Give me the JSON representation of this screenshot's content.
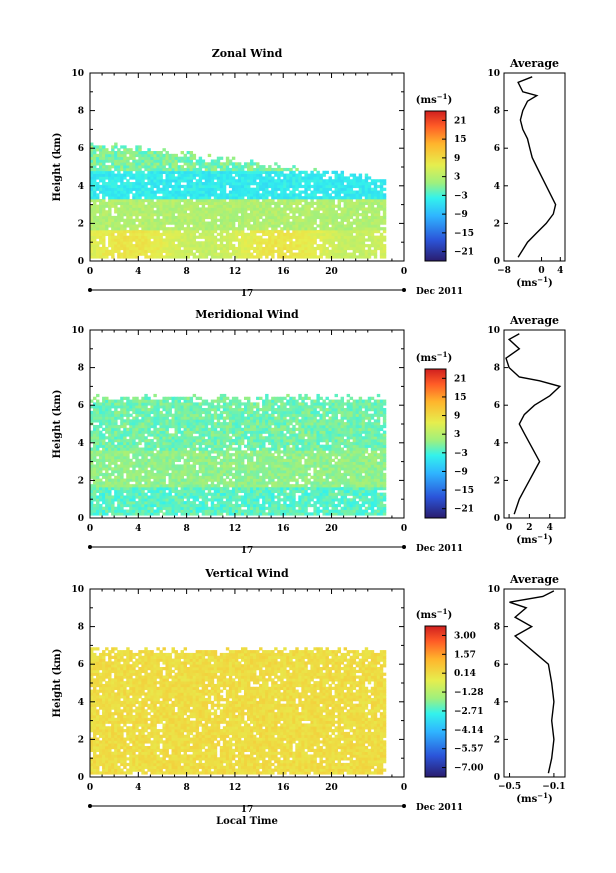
{
  "chart_data": [
    {
      "type": "heatmap",
      "title": "Zonal Wind",
      "xlabel": "",
      "ylabel": "Height (km)",
      "xlim": [
        0,
        26
      ],
      "ylim": [
        0,
        10
      ],
      "x_ticks": [
        "0",
        "4",
        "8",
        "12",
        "16",
        "20",
        "0"
      ],
      "y_ticks": [
        "0",
        "2",
        "4",
        "6",
        "8",
        "10"
      ],
      "date_label": "17",
      "month_label": "Dec 2011",
      "colorbar": {
        "unit": "(ms",
        "unit_exp": "−1",
        "unit_close": ")",
        "ticks": [
          "21",
          "15",
          "9",
          "3",
          "−3",
          "−9",
          "−15",
          "−21"
        ],
        "min": -24,
        "max": 24
      },
      "profile": {
        "title": "Average",
        "xlabel": "(ms",
        "xlabel_exp": "−1",
        "xlabel_close": ")",
        "x_ticks": [
          "−8",
          "0",
          "4"
        ],
        "xlim": [
          -8,
          5
        ],
        "points": [
          [
            -5,
            0.2
          ],
          [
            -4,
            0.6
          ],
          [
            -3,
            1.0
          ],
          [
            -1,
            1.5
          ],
          [
            1,
            2.0
          ],
          [
            2.5,
            2.5
          ],
          [
            3,
            3.0
          ],
          [
            2,
            3.5
          ],
          [
            1,
            4.0
          ],
          [
            0,
            4.5
          ],
          [
            -1,
            5.0
          ],
          [
            -2,
            5.5
          ],
          [
            -2.5,
            6.0
          ],
          [
            -3,
            6.5
          ],
          [
            -4,
            7.0
          ],
          [
            -4.5,
            7.5
          ],
          [
            -4,
            8.0
          ],
          [
            -3,
            8.5
          ],
          [
            -1,
            8.8
          ],
          [
            -4,
            9.0
          ],
          [
            -5,
            9.5
          ],
          [
            -2,
            9.8
          ]
        ]
      }
    },
    {
      "type": "heatmap",
      "title": "Meridional Wind",
      "xlabel": "",
      "ylabel": "Height (km)",
      "xlim": [
        0,
        26
      ],
      "ylim": [
        0,
        10
      ],
      "x_ticks": [
        "0",
        "4",
        "8",
        "12",
        "16",
        "20",
        "0"
      ],
      "y_ticks": [
        "0",
        "2",
        "4",
        "6",
        "8",
        "10"
      ],
      "date_label": "17",
      "month_label": "Dec 2011",
      "colorbar": {
        "unit": "(ms",
        "unit_exp": "−1",
        "unit_close": ")",
        "ticks": [
          "21",
          "15",
          "9",
          "3",
          "−3",
          "−9",
          "−15",
          "−21"
        ],
        "min": -24,
        "max": 24
      },
      "profile": {
        "title": "Average",
        "xlabel": "(ms",
        "xlabel_exp": "−1",
        "xlabel_close": ")",
        "x_ticks": [
          "0",
          "2",
          "4"
        ],
        "xlim": [
          -0.5,
          5.5
        ],
        "points": [
          [
            0.5,
            0.2
          ],
          [
            1,
            1.0
          ],
          [
            1.5,
            1.5
          ],
          [
            2,
            2.0
          ],
          [
            2.5,
            2.5
          ],
          [
            3,
            3.0
          ],
          [
            2.5,
            3.5
          ],
          [
            2,
            4.0
          ],
          [
            1.5,
            4.5
          ],
          [
            1,
            5.0
          ],
          [
            1.5,
            5.5
          ],
          [
            2.5,
            6.0
          ],
          [
            4,
            6.5
          ],
          [
            5,
            7.0
          ],
          [
            3,
            7.3
          ],
          [
            1,
            7.5
          ],
          [
            0,
            8.0
          ],
          [
            -0.3,
            8.5
          ],
          [
            1,
            9.0
          ],
          [
            0,
            9.5
          ],
          [
            1,
            9.8
          ]
        ]
      }
    },
    {
      "type": "heatmap",
      "title": "Vertical Wind",
      "xlabel": "Local Time",
      "ylabel": "Height (km)",
      "xlim": [
        0,
        26
      ],
      "ylim": [
        0,
        10
      ],
      "x_ticks": [
        "0",
        "4",
        "8",
        "12",
        "16",
        "20",
        "0"
      ],
      "y_ticks": [
        "0",
        "2",
        "4",
        "6",
        "8",
        "10"
      ],
      "date_label": "17",
      "month_label": "Dec 2011",
      "colorbar": {
        "unit": "(ms",
        "unit_exp": "−1",
        "unit_close": ")",
        "ticks": [
          "3.00",
          "1.57",
          "0.14",
          "−1.28",
          "−2.71",
          "−4.14",
          "−5.57",
          "−7.00"
        ],
        "min": -7.7,
        "max": 3.7
      },
      "profile": {
        "title": "Average",
        "xlabel": "(ms",
        "xlabel_exp": "−1",
        "xlabel_close": ")",
        "x_ticks": [
          "−0.5",
          "−0.1"
        ],
        "xlim": [
          -0.55,
          0
        ],
        "points": [
          [
            -0.15,
            0.2
          ],
          [
            -0.12,
            1.0
          ],
          [
            -0.1,
            2.0
          ],
          [
            -0.12,
            3.0
          ],
          [
            -0.1,
            4.0
          ],
          [
            -0.12,
            5.0
          ],
          [
            -0.15,
            6.0
          ],
          [
            -0.25,
            6.5
          ],
          [
            -0.35,
            7.0
          ],
          [
            -0.45,
            7.5
          ],
          [
            -0.3,
            8.0
          ],
          [
            -0.45,
            8.5
          ],
          [
            -0.35,
            9.0
          ],
          [
            -0.5,
            9.3
          ],
          [
            -0.2,
            9.6
          ],
          [
            -0.1,
            9.9
          ]
        ]
      }
    }
  ]
}
